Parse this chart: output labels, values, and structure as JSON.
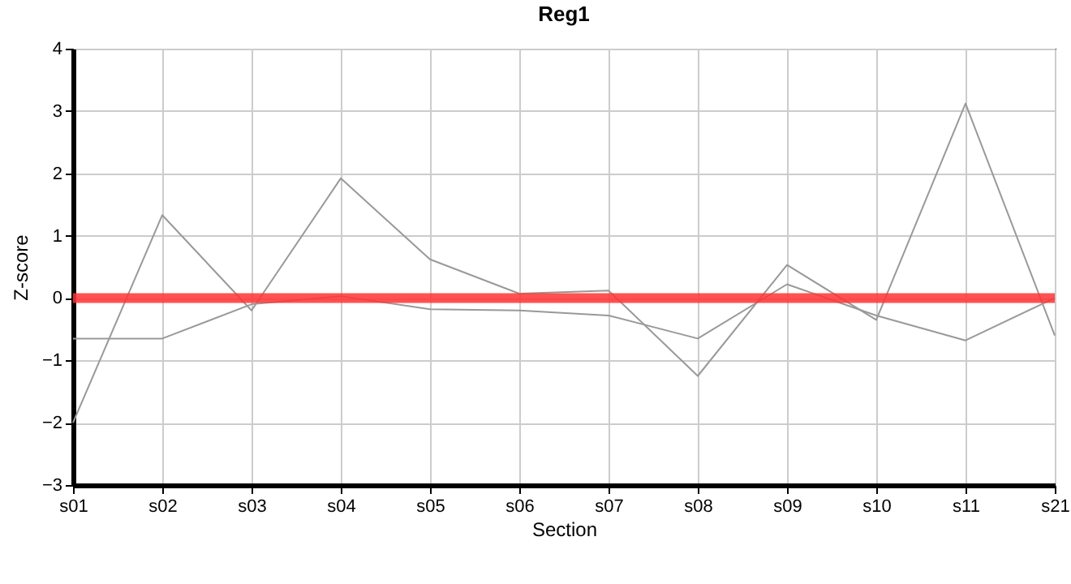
{
  "chart_data": {
    "type": "line",
    "title": "Reg1",
    "xlabel": "Section",
    "ylabel": "Z-score",
    "categories": [
      "s01",
      "s02",
      "s03",
      "s04",
      "s05",
      "s06",
      "s07",
      "s08",
      "s09",
      "s10",
      "s11",
      "s21"
    ],
    "series": [
      {
        "color": "#999999",
        "values": [
          -2.0,
          1.33,
          -0.2,
          1.92,
          0.62,
          0.07,
          0.12,
          -1.25,
          0.53,
          -0.35,
          3.12,
          -0.6
        ]
      },
      {
        "color": "#999999",
        "values": [
          -0.65,
          -0.65,
          -0.1,
          0.03,
          -0.18,
          -0.2,
          -0.28,
          -0.65,
          0.22,
          -0.28,
          -0.68,
          0.0
        ]
      }
    ],
    "ref_lines": [
      {
        "axis": "y",
        "value": 0,
        "color": "#ff3333"
      }
    ],
    "ylim": [
      -3,
      4
    ],
    "yticks": [
      -3,
      -2,
      -1,
      0,
      1,
      2,
      3,
      4
    ],
    "grid": true,
    "legend": false,
    "marker": "none",
    "line_style": "solid"
  }
}
